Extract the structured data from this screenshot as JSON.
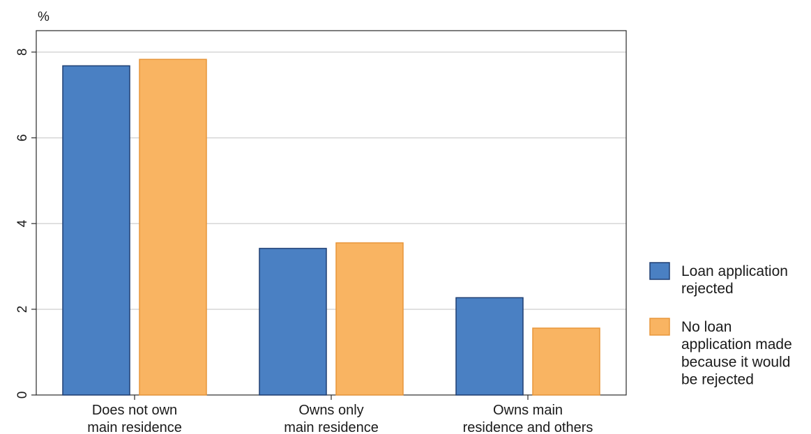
{
  "chart_data": {
    "type": "bar",
    "title": "",
    "ylabel": "%",
    "xlabel": "",
    "ylim": [
      0,
      8.5
    ],
    "yticks": [
      0,
      2,
      4,
      6,
      8
    ],
    "grid": true,
    "legend_position": "right",
    "categories": [
      [
        "Does not own",
        "main residence"
      ],
      [
        "Owns only",
        "main residence"
      ],
      [
        "Owns main",
        "residence and others"
      ]
    ],
    "series": [
      {
        "name": [
          "Loan application",
          "rejected"
        ],
        "color": "#4a80c3",
        "stroke": "#1f3f73",
        "values": [
          7.68,
          3.42,
          2.27
        ]
      },
      {
        "name": [
          "No loan",
          "application made",
          "because it would",
          "be rejected"
        ],
        "color": "#f9b462",
        "stroke": "#e8963a",
        "values": [
          7.83,
          3.55,
          1.56
        ]
      }
    ]
  }
}
